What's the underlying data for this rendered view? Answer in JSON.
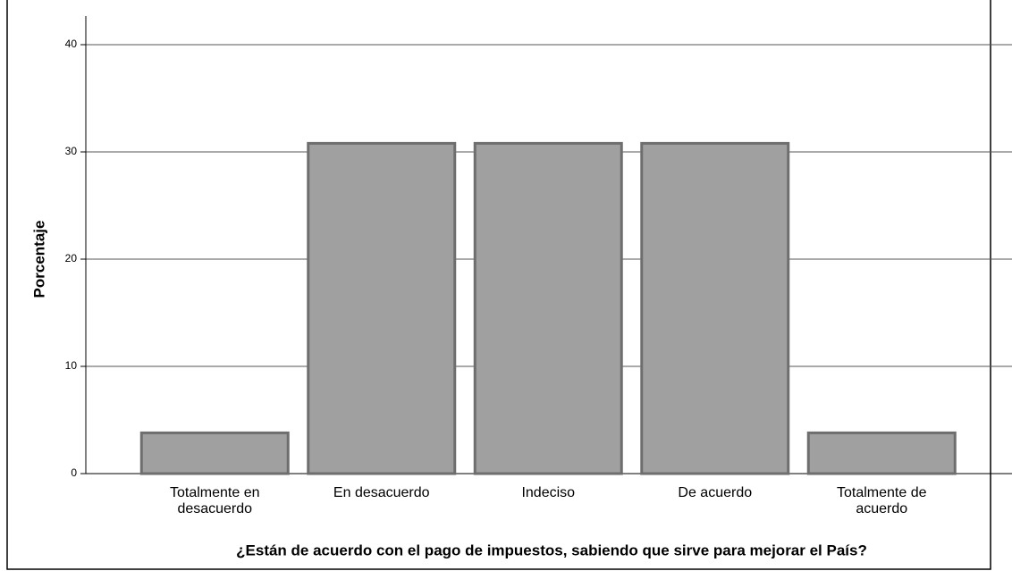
{
  "chart_data": {
    "type": "bar",
    "categories": [
      "Totalmente en desacuerdo",
      "En desacuerdo",
      "Indeciso",
      "De acuerdo",
      "Totalmente de acuerdo"
    ],
    "values": [
      3.8,
      30.8,
      30.8,
      30.8,
      3.8
    ],
    "color": "#a0a0a0",
    "ylim": [
      0,
      40
    ],
    "yticks": [
      0,
      10,
      20,
      30,
      40
    ],
    "grid": true,
    "y_label": "Porcentaje",
    "x_label": "¿Están de acuerdo con el pago de impuestos, sabiendo que sirve para mejorar el País?"
  }
}
